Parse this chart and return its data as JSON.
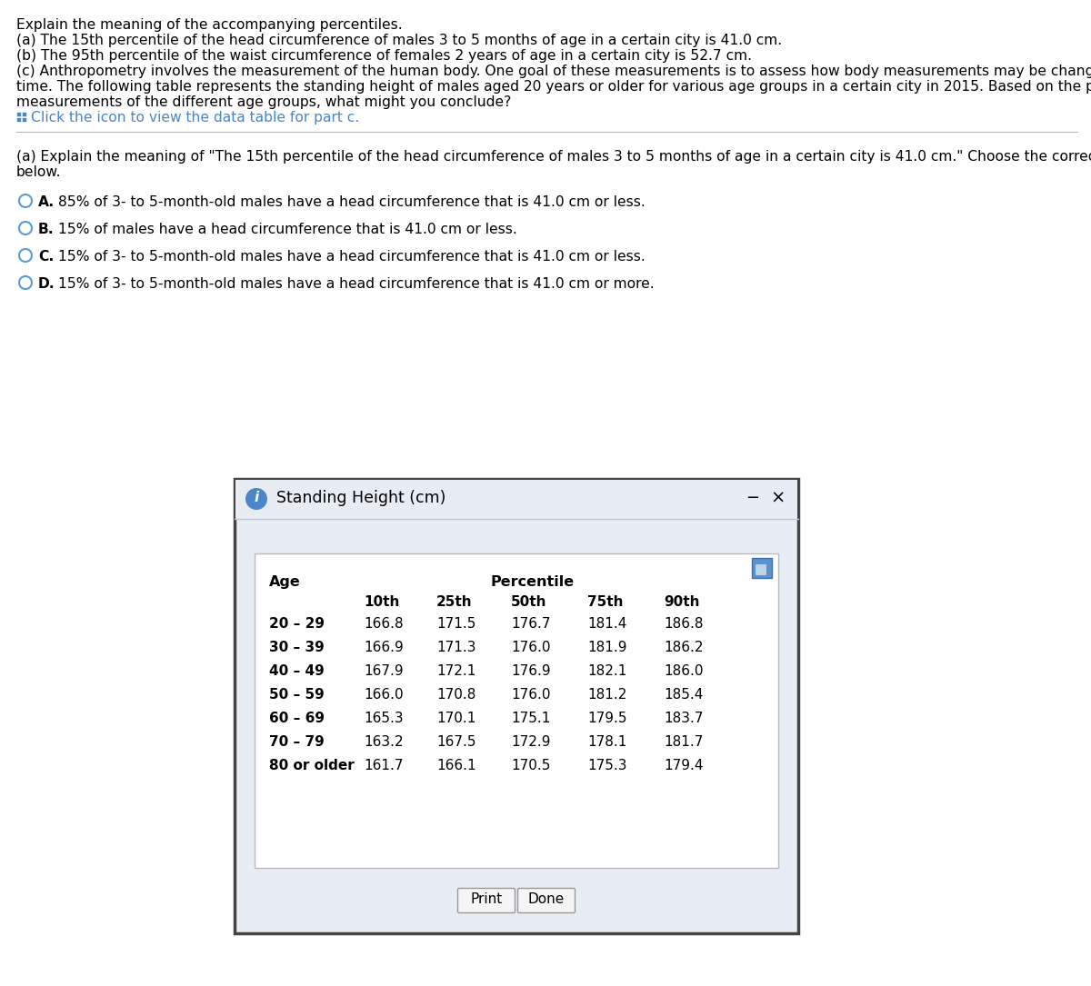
{
  "title_text": "Explain the meaning of the accompanying percentiles.",
  "intro_lines": [
    "(a) The 15th percentile of the head circumference of males 3 to 5 months of age in a certain city is 41.0 cm.",
    "(b) The 95th percentile of the waist circumference of females 2 years of age in a certain city is 52.7 cm.",
    "(c) Anthropometry involves the measurement of the human body. One goal of these measurements is to assess how body measurements may be changing over",
    "time. The following table represents the standing height of males aged 20 years or older for various age groups in a certain city in 2015. Based on the percentile",
    "measurements of the different age groups, what might you conclude?"
  ],
  "click_icon_text": "Click the icon to view the data table for part c.",
  "question_text": "(a) Explain the meaning of \"The 15th percentile of the head circumference of males 3 to 5 months of age in a certain city is 41.0 cm.\" Choose the correct answer",
  "question_text2": "below.",
  "options": [
    {
      "label": "A.",
      "text": "85% of 3- to 5-month-old males have a head circumference that is 41.0 cm or less."
    },
    {
      "label": "B.",
      "text": "15% of males have a head circumference that is 41.0 cm or less."
    },
    {
      "label": "C.",
      "text": "15% of 3- to 5-month-old males have a head circumference that is 41.0 cm or less."
    },
    {
      "label": "D.",
      "text": "15% of 3- to 5-month-old males have a head circumference that is 41.0 cm or more."
    }
  ],
  "popup_title": "Standing Height (cm)",
  "popup_bg": "#e8edf5",
  "popup_table_bg": "#ffffff",
  "table_header_age": "Age",
  "table_header_percentile": "Percentile",
  "table_col_headers": [
    "10th",
    "25th",
    "50th",
    "75th",
    "90th"
  ],
  "table_rows": [
    [
      "20 – 29",
      "166.8",
      "171.5",
      "176.7",
      "181.4",
      "186.8"
    ],
    [
      "30 – 39",
      "166.9",
      "171.3",
      "176.0",
      "181.9",
      "186.2"
    ],
    [
      "40 – 49",
      "167.9",
      "172.1",
      "176.9",
      "182.1",
      "186.0"
    ],
    [
      "50 – 59",
      "166.0",
      "170.8",
      "176.0",
      "181.2",
      "185.4"
    ],
    [
      "60 – 69",
      "165.3",
      "170.1",
      "175.1",
      "179.5",
      "183.7"
    ],
    [
      "70 – 79",
      "163.2",
      "167.5",
      "172.9",
      "178.1",
      "181.7"
    ],
    [
      "80 or older",
      "161.7",
      "166.1",
      "170.5",
      "175.3",
      "179.4"
    ]
  ],
  "print_btn": "Print",
  "done_btn": "Done",
  "circle_color": "#5b9bd5",
  "icon_color": "#4a86c8",
  "bg_color": "#ffffff",
  "text_color": "#000000",
  "separator_color": "#bbbbbb"
}
